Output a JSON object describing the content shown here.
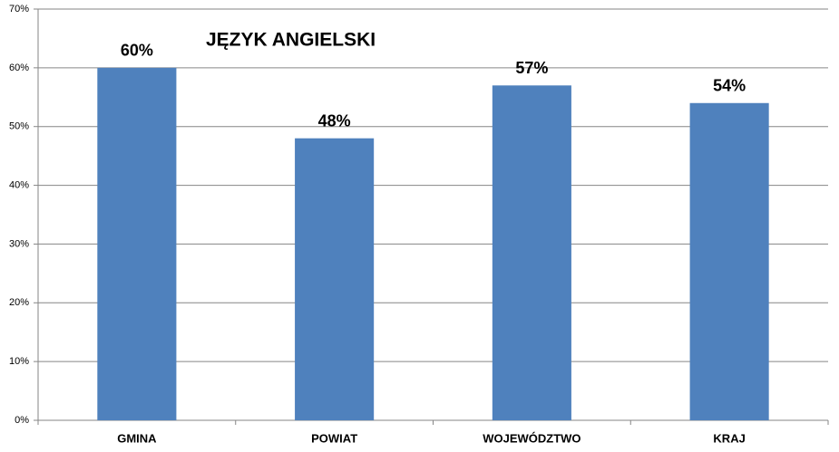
{
  "chart_data": {
    "type": "bar",
    "title": "JĘZYK ANGIELSKI",
    "categories": [
      "GMINA",
      "POWIAT",
      "WOJEWÓDZTWO",
      "KRAJ"
    ],
    "values": [
      60,
      48,
      57,
      54
    ],
    "value_labels": [
      "60%",
      "48%",
      "57%",
      "54%"
    ],
    "color": "#4f81bd",
    "ylim": [
      0,
      70
    ],
    "yticks": [
      {
        "value": 0,
        "label": "0%"
      },
      {
        "value": 10,
        "label": "10%"
      },
      {
        "value": 20,
        "label": "20%"
      },
      {
        "value": 30,
        "label": "30%"
      },
      {
        "value": 40,
        "label": "40%"
      },
      {
        "value": 50,
        "label": "50%"
      },
      {
        "value": 60,
        "label": "60%"
      },
      {
        "value": 70,
        "label": "70%"
      }
    ],
    "grid": true
  }
}
